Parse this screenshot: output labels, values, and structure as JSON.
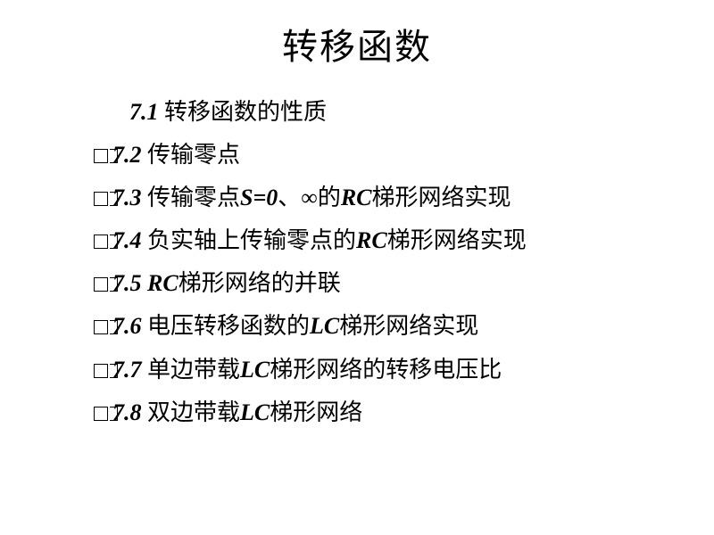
{
  "title": "转移函数",
  "items": [
    {
      "num": "7.1",
      "bullets": 0,
      "prefix": "",
      "rich": [
        {
          "t": " 转移函数的性质"
        }
      ]
    },
    {
      "num": ".2",
      "bullets": 2,
      "prefix": "7",
      "rich": [
        {
          "t": " 传输零点"
        }
      ]
    },
    {
      "num": ".3",
      "bullets": 2,
      "prefix": "7",
      "rich": [
        {
          "t": " 传输零点"
        },
        {
          "t": "S=0",
          "cls": "bi"
        },
        {
          "t": "、∞的"
        },
        {
          "t": "RC",
          "cls": "bi"
        },
        {
          "t": "梯形网络实现"
        }
      ]
    },
    {
      "num": ".4",
      "bullets": 2,
      "prefix": "7",
      "rich": [
        {
          "t": " 负实轴上传输零点的"
        },
        {
          "t": "RC",
          "cls": "bi"
        },
        {
          "t": "梯形网络实现"
        }
      ]
    },
    {
      "num": ".5 RC",
      "bullets": 2,
      "prefix": "7",
      "rich": [
        {
          "t": "梯形网络的并联"
        }
      ]
    },
    {
      "num": ".6",
      "bullets": 2,
      "prefix": "7",
      "rich": [
        {
          "t": " 电压转移函数的"
        },
        {
          "t": "LC",
          "cls": "bi"
        },
        {
          "t": "梯形网络实现"
        }
      ]
    },
    {
      "num": ".7",
      "bullets": 2,
      "prefix": "7",
      "rich": [
        {
          "t": " 单边带载"
        },
        {
          "t": "LC",
          "cls": "bi"
        },
        {
          "t": "梯形网络的转移电压比"
        }
      ]
    },
    {
      "num": ".8",
      "bullets": 2,
      "prefix": "7",
      "rich": [
        {
          "t": " 双边带载"
        },
        {
          "t": "LC",
          "cls": "bi"
        },
        {
          "t": "梯形网络"
        }
      ]
    }
  ],
  "style": {
    "background": "#ffffff",
    "text_color": "#000000",
    "title_fontsize": 40,
    "item_fontsize": 26,
    "line_height": 1.85,
    "toc_left_pad": 105,
    "first_indent": 40
  }
}
